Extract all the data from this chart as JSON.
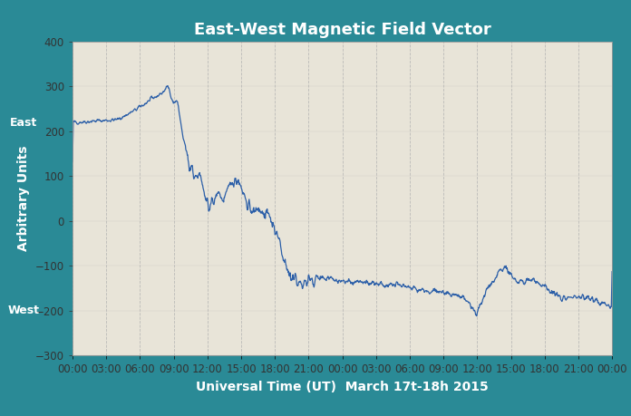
{
  "title": "East-West Magnetic Field Vector",
  "xlabel": "Universal Time (UT)  March 17t-18h 2015",
  "ylabel": "Arbitrary Units",
  "ylabel_east": "East",
  "ylabel_west": "West",
  "ylim": [
    -300,
    400
  ],
  "yticks": [
    -300,
    -200,
    -100,
    0,
    100,
    200,
    300,
    400
  ],
  "xtick_labels": [
    "00:00",
    "03:00",
    "06:00",
    "09:00",
    "12:00",
    "15:00",
    "18:00",
    "21:00",
    "00:00",
    "03:00",
    "06:00",
    "09:00",
    "12:00",
    "15:00",
    "18:00",
    "21:00",
    "00:00"
  ],
  "n_xticks": 17,
  "background_color": "#e8e4d8",
  "outer_background": "#2a8a96",
  "line_color": "#2c5fa8",
  "title_color": "#ffffff",
  "label_color": "#ffffff",
  "tick_color": "#333333",
  "grid_color": "#b0b0b0",
  "line_width": 0.9,
  "title_fontsize": 13,
  "label_fontsize": 10,
  "tick_fontsize": 8.5
}
